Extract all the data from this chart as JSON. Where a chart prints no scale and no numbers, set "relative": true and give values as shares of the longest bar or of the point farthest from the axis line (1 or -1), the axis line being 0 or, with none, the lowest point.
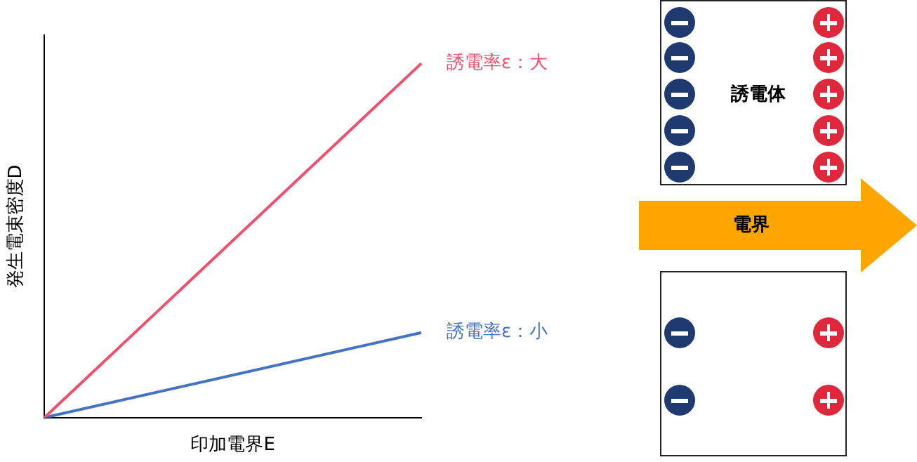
{
  "chart_data": {
    "type": "line",
    "categories": [
      null,
      null
    ],
    "relative": true,
    "marker": "none",
    "xlabel": "印加電界E",
    "ylabel": "発生電束密度D",
    "series": [
      {
        "name": "誘電率ε：大",
        "color": "#f0506e",
        "values": [
          0,
          1
        ]
      },
      {
        "name": "誘電率ε：小",
        "color": "#4472c4",
        "values": [
          0,
          0.24
        ]
      }
    ],
    "annotations": [
      "誘電体",
      "電界"
    ]
  }
}
